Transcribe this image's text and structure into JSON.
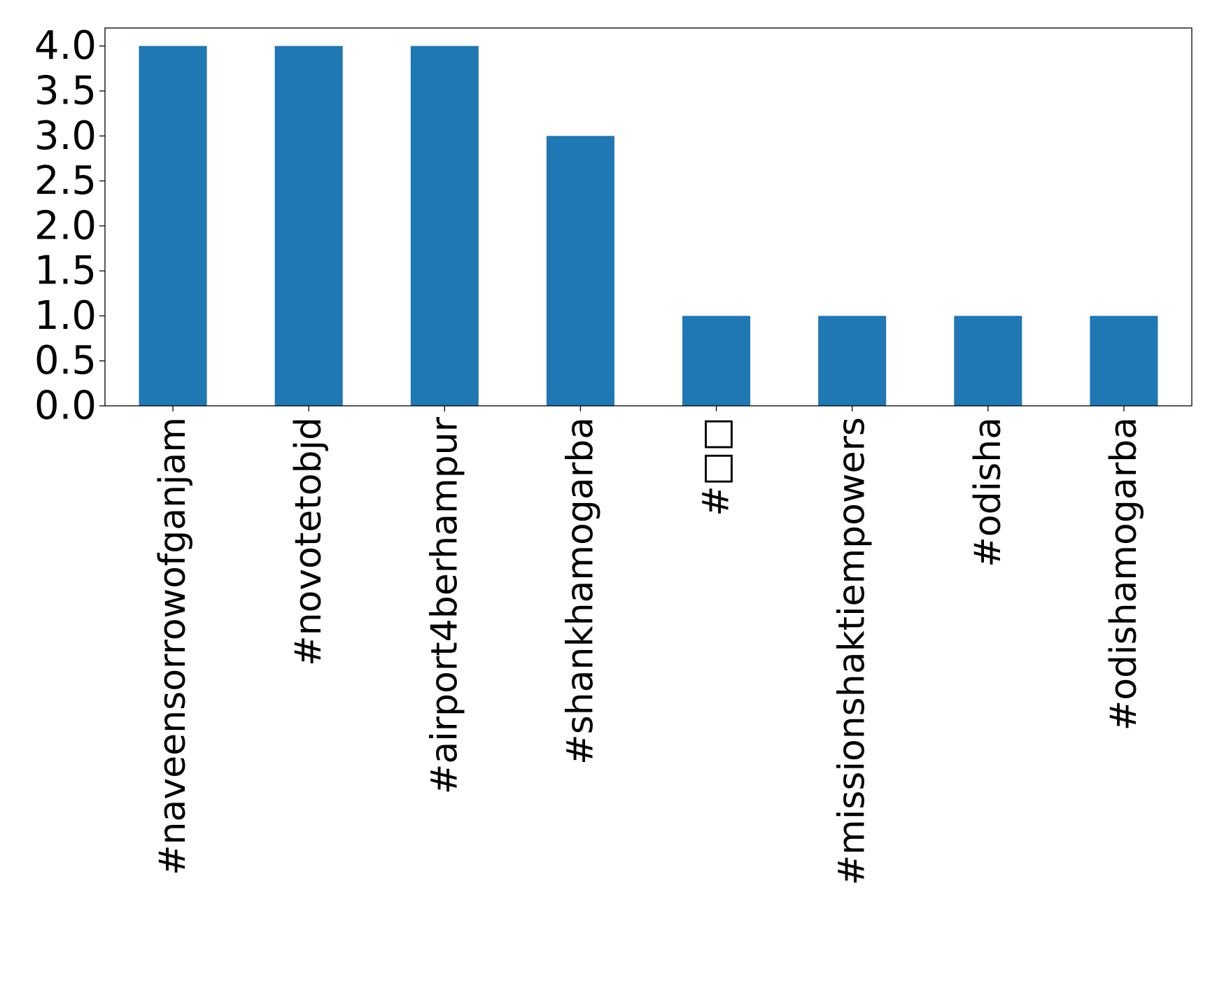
{
  "chart_data": {
    "type": "bar",
    "categories": [
      "#naveensorrowofganjam",
      "#novotetobjd",
      "#airport4berhampur",
      "#shankhamogarba",
      "#□□",
      "#missionshaktiempowers",
      "#odisha",
      "#odishamogarba"
    ],
    "values": [
      4,
      4,
      4,
      3,
      1,
      1,
      1,
      1
    ],
    "yticks": [
      "0.0",
      "0.5",
      "1.0",
      "1.5",
      "2.0",
      "2.5",
      "3.0",
      "3.5",
      "4.0"
    ],
    "ylim": [
      0,
      4.2
    ],
    "title": "",
    "xlabel": "",
    "ylabel": "",
    "grid": false,
    "bar_color": "#1f77b4",
    "axis_color": "#000000"
  }
}
